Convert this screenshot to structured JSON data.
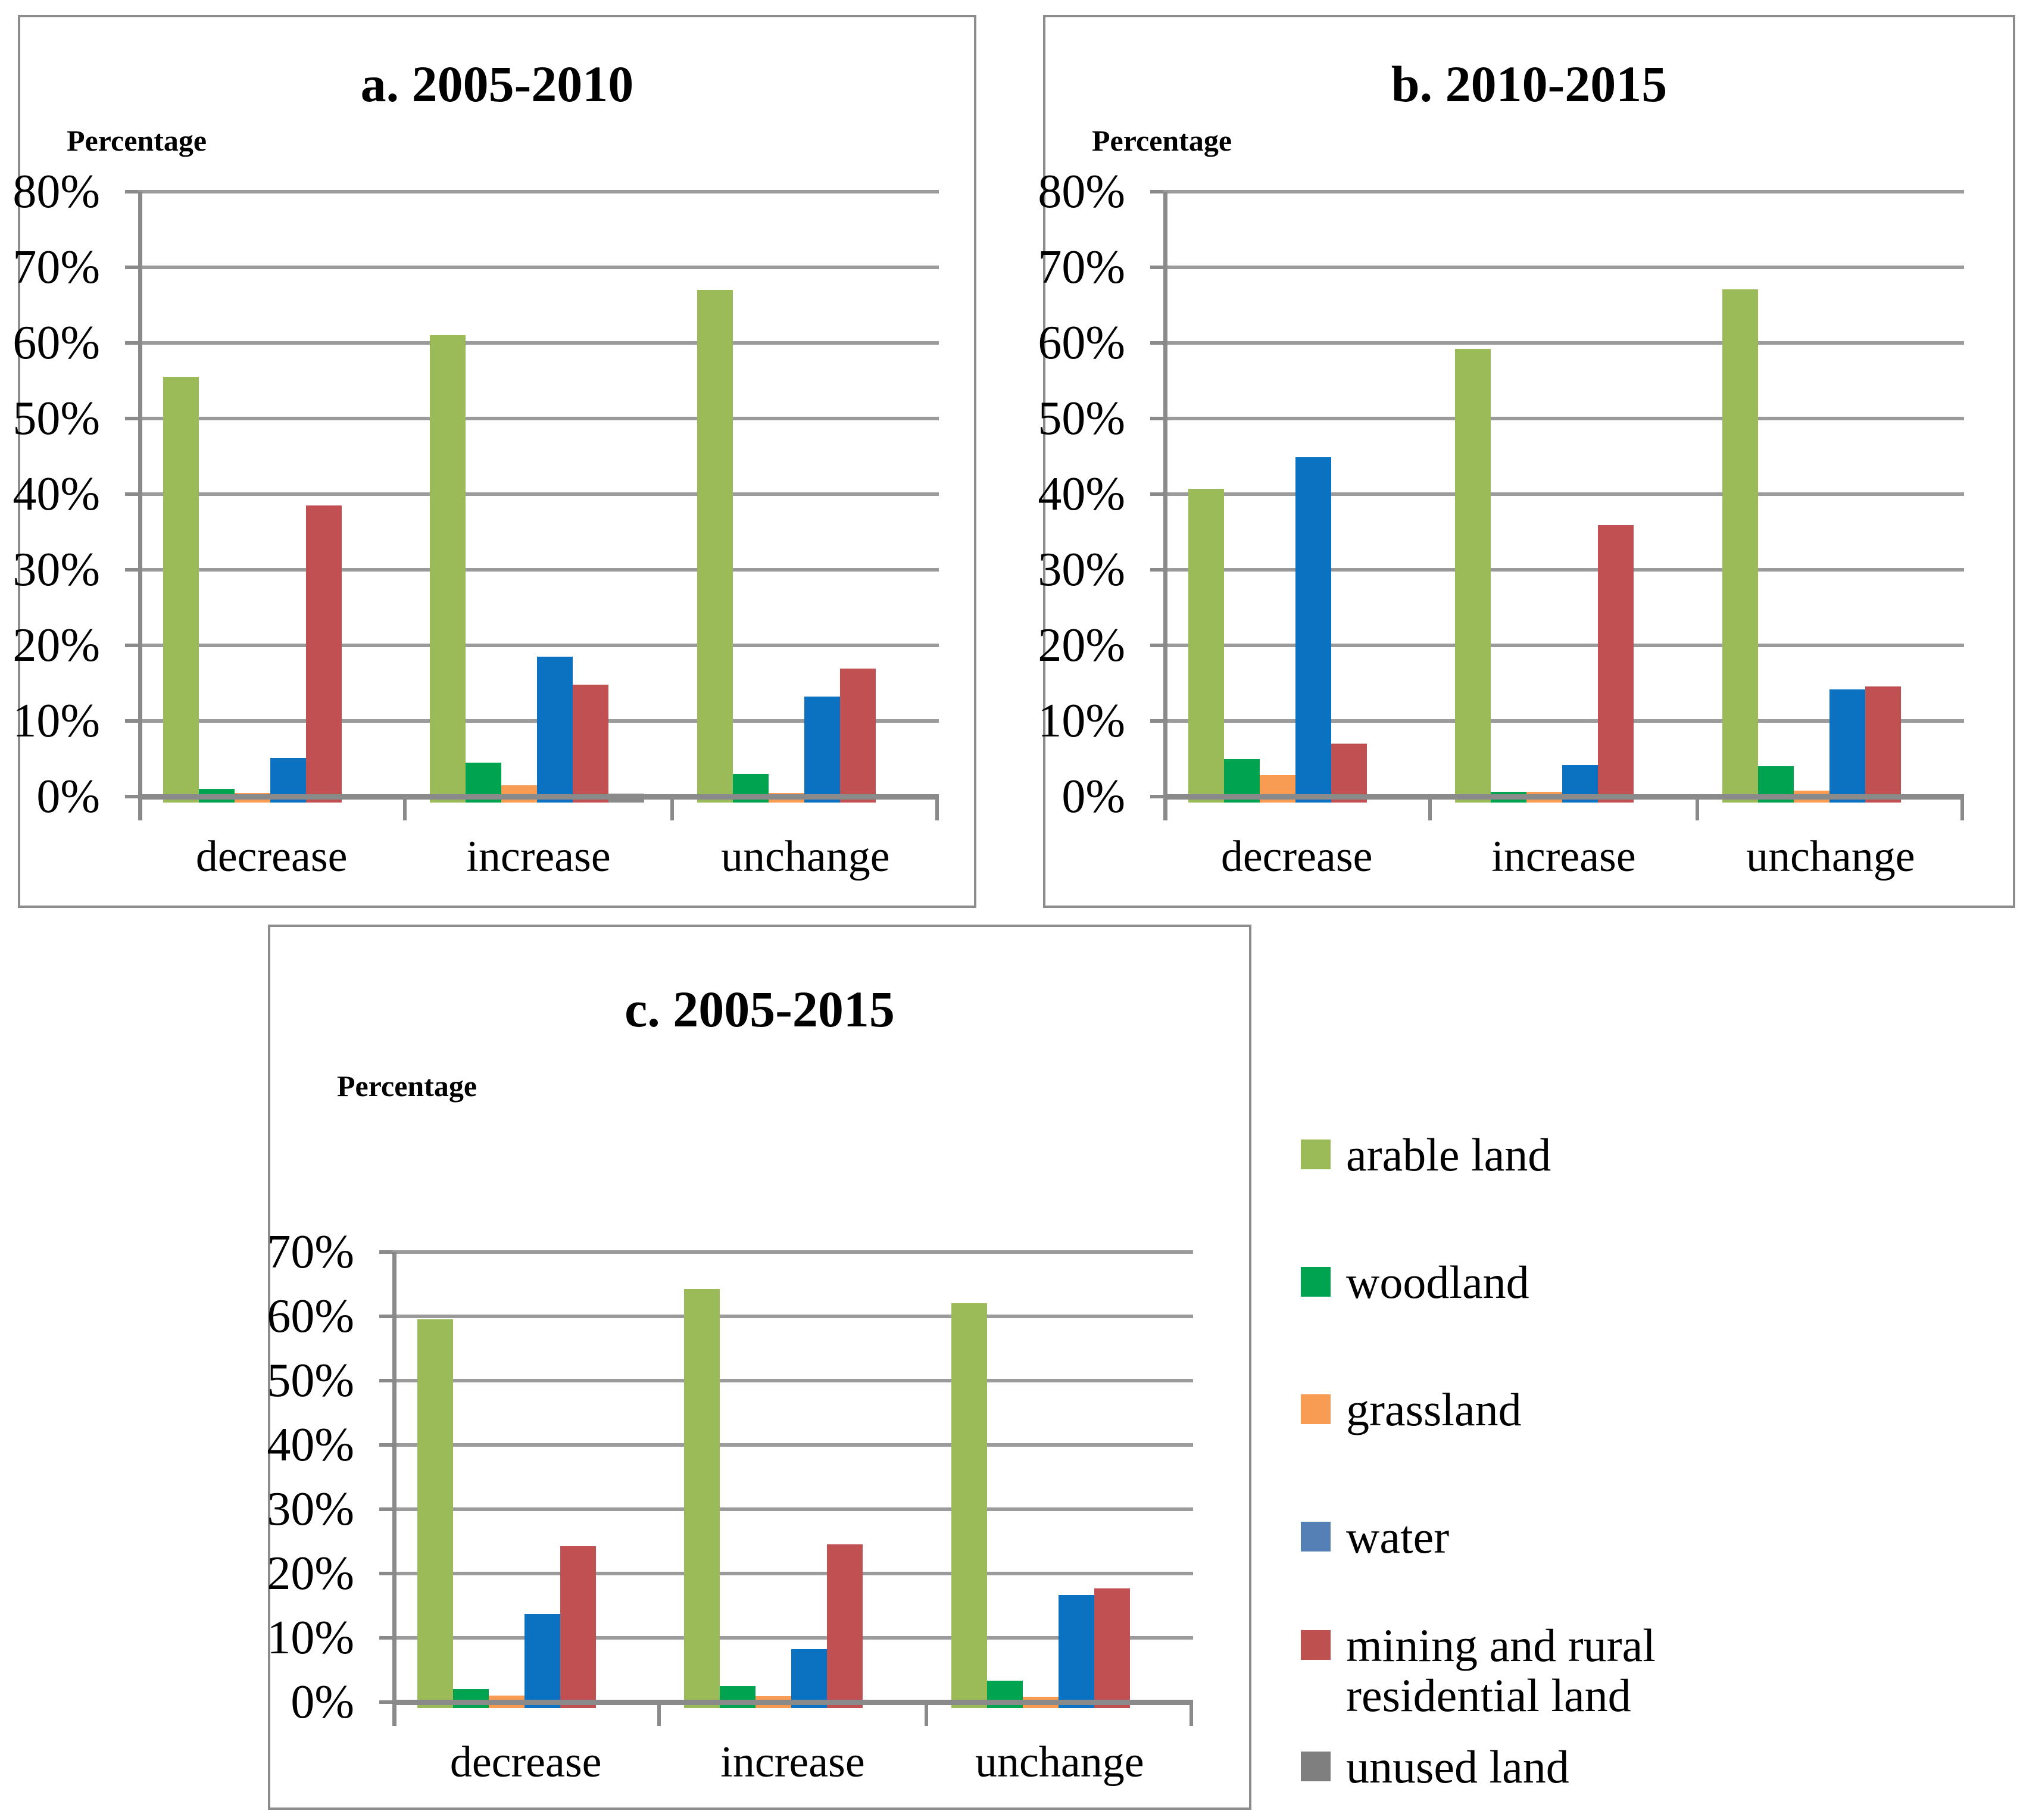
{
  "figure_title": "",
  "chart_data": [
    {
      "panel": "a",
      "type": "bar",
      "title": "a. 2005-2010",
      "y_axis_label": "Percentage",
      "ylim": [
        0,
        80
      ],
      "ytick_step": 10,
      "ytick_labels": [
        "0%",
        "10%",
        "20%",
        "30%",
        "40%",
        "50%",
        "60%",
        "70%",
        "80%"
      ],
      "grid": true,
      "categories": [
        "decrease",
        "increase",
        "unchange"
      ],
      "series": [
        {
          "name": "arable land",
          "color": "#9BBB59",
          "values": [
            55.5,
            61.0,
            67.0
          ]
        },
        {
          "name": "woodland",
          "color": "#00A34F",
          "values": [
            1.0,
            4.5,
            3.0
          ]
        },
        {
          "name": "grassland",
          "color": "#F79C52",
          "values": [
            0.5,
            1.5,
            0.5
          ]
        },
        {
          "name": "water",
          "color": "#0B72C1",
          "values": [
            5.1,
            18.5,
            13.2
          ]
        },
        {
          "name": "mining and rural residential land",
          "color": "#C05052",
          "values": [
            38.5,
            14.8,
            16.9
          ]
        },
        {
          "name": "unused land",
          "color": "#8A8A8A",
          "values": [
            0,
            0.3,
            0
          ]
        }
      ]
    },
    {
      "panel": "b",
      "type": "bar",
      "title": "b. 2010-2015",
      "y_axis_label": "Percentage",
      "ylim": [
        0,
        80
      ],
      "ytick_step": 10,
      "ytick_labels": [
        "0%",
        "10%",
        "20%",
        "30%",
        "40%",
        "50%",
        "60%",
        "70%",
        "80%"
      ],
      "grid": true,
      "categories": [
        "decrease",
        "increase",
        "unchange"
      ],
      "series": [
        {
          "name": "arable land",
          "color": "#9BBB59",
          "values": [
            40.7,
            59.2,
            67.1
          ]
        },
        {
          "name": "woodland",
          "color": "#00A34F",
          "values": [
            5.0,
            0.6,
            4.0
          ]
        },
        {
          "name": "grassland",
          "color": "#F79C52",
          "values": [
            2.8,
            0.6,
            0.8
          ]
        },
        {
          "name": "water",
          "color": "#0B72C1",
          "values": [
            44.9,
            4.2,
            14.2
          ]
        },
        {
          "name": "mining and rural residential land",
          "color": "#C05052",
          "values": [
            7.0,
            35.9,
            14.6
          ]
        },
        {
          "name": "unused land",
          "color": "#8A8A8A",
          "values": [
            0,
            0,
            0
          ]
        }
      ]
    },
    {
      "panel": "c",
      "type": "bar",
      "title": "c. 2005-2015",
      "y_axis_label": "Percentage",
      "ylim": [
        0,
        70
      ],
      "ytick_step": 10,
      "ytick_labels": [
        "0%",
        "10%",
        "20%",
        "30%",
        "40%",
        "50%",
        "60%",
        "70%"
      ],
      "grid": true,
      "categories": [
        "decrease",
        "increase",
        "unchange"
      ],
      "series": [
        {
          "name": "arable land",
          "color": "#9BBB59",
          "values": [
            59.5,
            64.3,
            62.0
          ]
        },
        {
          "name": "woodland",
          "color": "#00A34F",
          "values": [
            2.0,
            2.5,
            3.3
          ]
        },
        {
          "name": "grassland",
          "color": "#F79C52",
          "values": [
            1.0,
            0.9,
            0.8
          ]
        },
        {
          "name": "water",
          "color": "#0B72C1",
          "values": [
            13.7,
            8.2,
            16.7
          ]
        },
        {
          "name": "mining and rural residential land",
          "color": "#C05052",
          "values": [
            24.3,
            24.5,
            17.7
          ]
        },
        {
          "name": "unused land",
          "color": "#8A8A8A",
          "values": [
            0,
            0,
            0
          ]
        }
      ]
    }
  ],
  "legend": {
    "position": "right-of-panel-c",
    "items": [
      {
        "label": "arable land",
        "color": "#9BBB59"
      },
      {
        "label": "woodland",
        "color": "#00A34F"
      },
      {
        "label": "grassland",
        "color": "#F79C52"
      },
      {
        "label": "water",
        "color": "#5580B5"
      },
      {
        "label": "mining and rural residential land",
        "color": "#BF5050"
      },
      {
        "label": "unused land",
        "color": "#7F7F7F"
      }
    ]
  },
  "style_colors": {
    "gridline": "#9B9B9B",
    "axis": "#8A8A8A",
    "panel_border": "#8C8C8C",
    "background": "#FFFFFF"
  }
}
